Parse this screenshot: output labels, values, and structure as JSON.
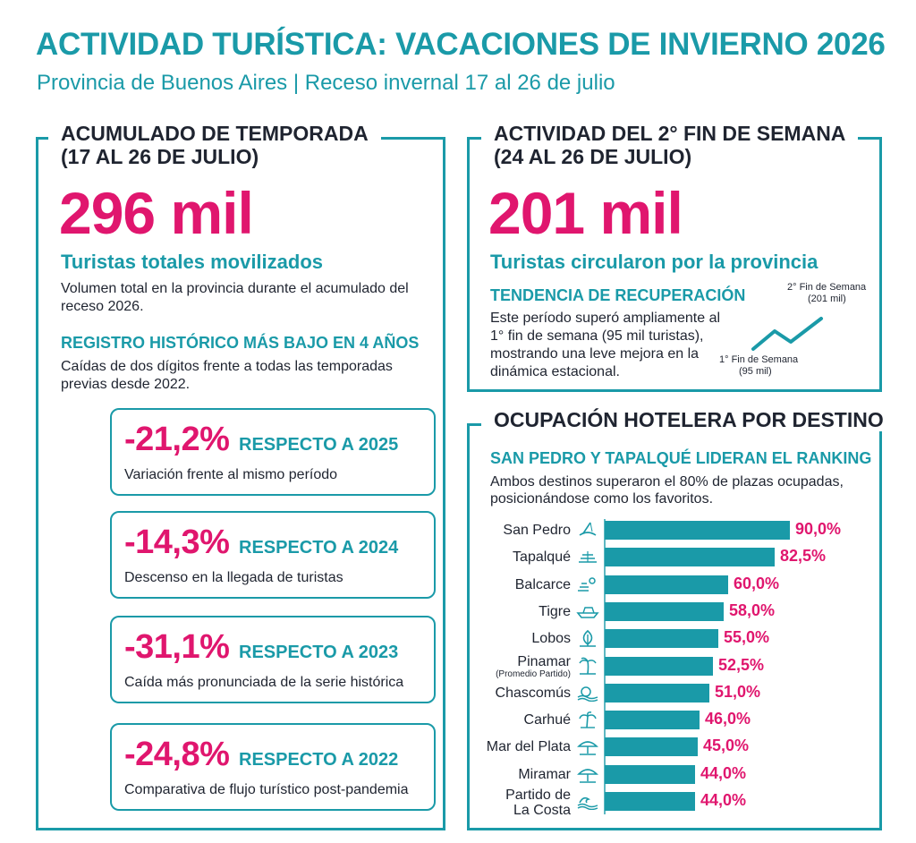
{
  "header": {
    "title": "ACTIVIDAD TURÍSTICA: VACACIONES DE INVIERNO 2026",
    "subtitle": "Provincia de Buenos Aires | Receso invernal 17 al 26 de julio"
  },
  "left": {
    "title_line1": "ACUMULADO DE TEMPORADA",
    "title_line2": "(17 AL 26 DE JULIO)",
    "big_value": "296 mil",
    "big_label": "Turistas totales movilizados",
    "desc": "Volumen total en la provincia durante el acumulado del receso 2026.",
    "hist_title": "REGISTRO HISTÓRICO MÁS BAJO EN 4 AÑOS",
    "hist_desc": "Caídas de dos dígitos frente a todas las temporadas previas desde 2022.",
    "stats": [
      {
        "pct": "-21,2%",
        "resp": "RESPECTO A 2025",
        "desc": "Variación frente al mismo período"
      },
      {
        "pct": "-14,3%",
        "resp": "RESPECTO A 2024",
        "desc": "Descenso en la llegada de turistas"
      },
      {
        "pct": "-31,1%",
        "resp": "RESPECTO A 2023",
        "desc": "Caída más pronunciada de la serie histórica"
      },
      {
        "pct": "-24,8%",
        "resp": "RESPECTO A 2022",
        "desc": "Comparativa de flujo turístico post-pandemia"
      }
    ]
  },
  "right_top": {
    "title_line1": "ACTIVIDAD DEL 2° FIN DE SEMANA",
    "title_line2": "(24 AL 26 DE JULIO)",
    "big_value": "201 mil",
    "big_label": "Turistas circularon por la provincia",
    "trend_title": "TENDENCIA DE RECUPERACIÓN",
    "trend_desc": "Este período superó ampliamente al 1° fin de semana (95 mil turistas), mostrando una leve mejora en la dinámica estacional.",
    "trend_high_label": "2° Fin de Semana",
    "trend_high_value": "(201 mil)",
    "trend_low_label": "1° Fin de Semana",
    "trend_low_value": "(95 mil)"
  },
  "right_bottom": {
    "title": "OCUPACIÓN HOTELERA POR DESTINO",
    "rank_title": "SAN PEDRO Y TAPALQUÉ LIDERAN EL RANKING",
    "rank_desc": "Ambos destinos superaron el 80% de plazas ocupadas, posicionándose como los favoritos."
  },
  "chart_data": {
    "type": "bar",
    "orientation": "horizontal",
    "title": "OCUPACIÓN HOTELERA POR DESTINO",
    "categories": [
      "San Pedro",
      "Tapalqué",
      "Balcarce",
      "Tigre",
      "Lobos",
      "Pinamar",
      "Chascomús",
      "Carhué",
      "Mar del Plata",
      "Miramar",
      "Partido de La Costa"
    ],
    "category_notes": {
      "Pinamar": "(Promedio Partido)"
    },
    "values": [
      90.0,
      82.5,
      60.0,
      58.0,
      55.0,
      52.5,
      51.0,
      46.0,
      45.0,
      44.0,
      44.0
    ],
    "value_labels": [
      "90,0%",
      "82,5%",
      "60,0%",
      "58,0%",
      "55,0%",
      "52,5%",
      "51,0%",
      "46,0%",
      "45,0%",
      "44,0%",
      "44,0%"
    ],
    "icons": [
      "fishing-icon",
      "field-icon",
      "sun-field-icon",
      "boat-icon",
      "tree-icon",
      "palm-icon",
      "lake-icon",
      "palm-tree-icon",
      "umbrella-icon",
      "umbrella-icon",
      "wave-icon"
    ],
    "xlim": [
      0,
      100
    ],
    "bar_color": "#1a9aa8",
    "value_color": "#e0166e"
  }
}
